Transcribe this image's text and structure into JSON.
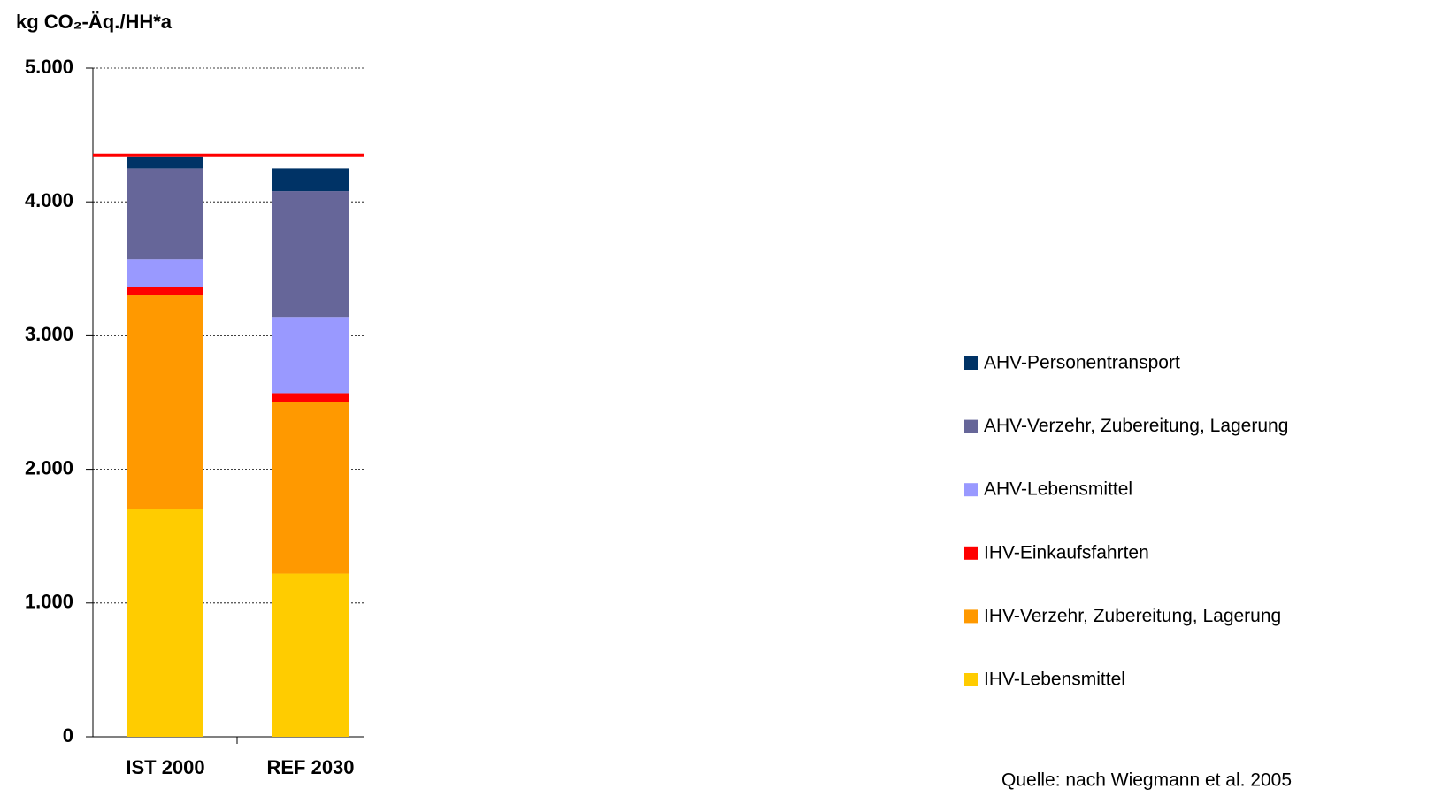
{
  "chart_data": {
    "type": "stacked_bar",
    "y_axis_label": "kg CO₂-Äq./HH*a",
    "categories": [
      "IST 2000",
      "REF 2030"
    ],
    "series": [
      {
        "name": "IHV-Lebensmittel",
        "color": "#ffcc00",
        "values": [
          1700,
          1220
        ]
      },
      {
        "name": "IHV-Verzehr, Zubereitung, Lagerung",
        "color": "#ff9900",
        "values": [
          1600,
          1280
        ]
      },
      {
        "name": "IHV-Einkaufsfahrten",
        "color": "#ff0000",
        "values": [
          60,
          70
        ]
      },
      {
        "name": "AHV-Lebensmittel",
        "color": "#9999ff",
        "values": [
          210,
          570
        ]
      },
      {
        "name": "AHV-Verzehr, Zubereitung, Lagerung",
        "color": "#666699",
        "values": [
          680,
          940
        ]
      },
      {
        "name": "AHV-Personentransport",
        "color": "#003366",
        "values": [
          90,
          170
        ]
      }
    ],
    "reference_line": {
      "value": 4350,
      "color": "#ff0000"
    },
    "ylim": [
      0,
      5000
    ],
    "yticks": [
      0,
      {
        "value": 1000,
        "label": "1.000"
      },
      {
        "value": 2000,
        "label": "2.000"
      },
      {
        "value": 3000,
        "label": "3.000"
      },
      {
        "value": 4000,
        "label": "4.000"
      },
      {
        "value": 5000,
        "label": "5.000"
      }
    ],
    "grid": true,
    "legend": "right",
    "source": "Quelle: nach Wiegmann et al. 2005"
  }
}
